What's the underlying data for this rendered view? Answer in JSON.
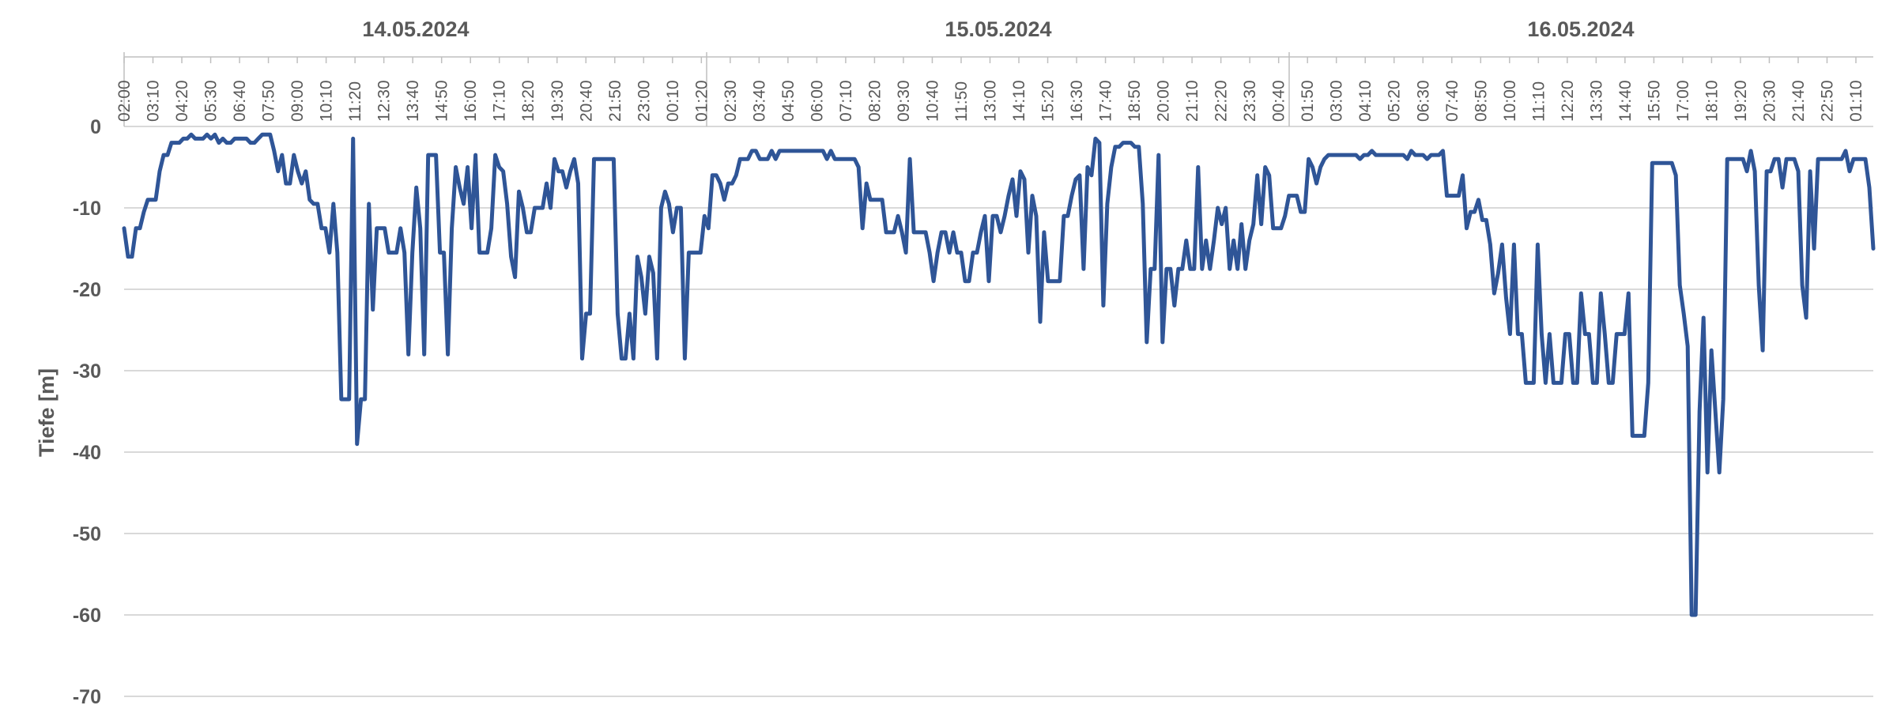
{
  "chart_data": {
    "type": "line",
    "ylabel": "Tiefe [m]",
    "ylim": [
      -70,
      0
    ],
    "yticks": [
      0,
      -10,
      -20,
      -30,
      -40,
      -50,
      -60,
      -70
    ],
    "grid": true,
    "line_color": "#2F5597",
    "date_labels": [
      "14.05.2024",
      "15.05.2024",
      "16.05.2024"
    ],
    "time_ticks": [
      "02:00",
      "03:10",
      "04:20",
      "05:30",
      "06:40",
      "07:50",
      "09:00",
      "10:10",
      "11:20",
      "12:30",
      "13:40",
      "14:50",
      "16:00",
      "17:10",
      "18:20",
      "19:30",
      "20:40",
      "21:50",
      "23:00",
      "00:10",
      "01:20",
      "02:30",
      "03:40",
      "04:50",
      "06:00",
      "07:10",
      "08:20",
      "09:30",
      "10:40",
      "11:50",
      "13:00",
      "14:10",
      "15:20",
      "16:30",
      "17:40",
      "18:50",
      "20:00",
      "21:10",
      "22:20",
      "23:30",
      "00:40",
      "01:50",
      "03:00",
      "04:10",
      "05:20",
      "06:30",
      "07:40",
      "08:50",
      "10:00",
      "11:10",
      "12:20",
      "13:30",
      "14:40",
      "15:50",
      "17:00",
      "18:10",
      "19:20",
      "20:30",
      "21:40",
      "22:50",
      "01:10"
    ],
    "series": [
      {
        "x_start": "2024-05-14 02:00",
        "x_end": "2024-05-17 02:00",
        "values": [
          -12.5,
          -16,
          -16,
          -12.5,
          -12.5,
          -10.5,
          -9,
          -9,
          -9,
          -5.5,
          -3.5,
          -3.5,
          -2,
          -2,
          -2,
          -1.5,
          -1.5,
          -1,
          -1.5,
          -1.5,
          -1.5,
          -1,
          -1.5,
          -1,
          -2,
          -1.5,
          -2,
          -2,
          -1.5,
          -1.5,
          -1.5,
          -1.5,
          -2,
          -2,
          -1.5,
          -1,
          -1,
          -1,
          -3,
          -5.5,
          -3.5,
          -7,
          -7,
          -3.5,
          -5.5,
          -7,
          -5.5,
          -9,
          -9.5,
          -9.5,
          -12.5,
          -12.5,
          -15.5,
          -9.5,
          -15.5,
          -33.5,
          -33.5,
          -33.5,
          -1.5,
          -39,
          -33.5,
          -33.5,
          -9.5,
          -22.5,
          -12.5,
          -12.5,
          -12.5,
          -15.5,
          -15.5,
          -15.5,
          -12.5,
          -15.5,
          -28,
          -15.5,
          -7.5,
          -12.5,
          -28,
          -3.5,
          -3.5,
          -3.5,
          -15.5,
          -15.5,
          -28,
          -12.5,
          -5,
          -7.5,
          -9.5,
          -5,
          -12.5,
          -3.5,
          -15.5,
          -15.5,
          -15.5,
          -12.5,
          -3.5,
          -5,
          -5.5,
          -9.5,
          -16,
          -18.5,
          -8,
          -10,
          -13,
          -13,
          -10,
          -10,
          -10,
          -7,
          -10,
          -4,
          -5.5,
          -5.5,
          -7.5,
          -5.5,
          -4,
          -7,
          -28.5,
          -23,
          -23,
          -4,
          -4,
          -4,
          -4,
          -4,
          -4,
          -23,
          -28.5,
          -28.5,
          -23,
          -28.5,
          -16,
          -18.5,
          -23,
          -16,
          -18,
          -28.5,
          -10,
          -8,
          -9.5,
          -13,
          -10,
          -10,
          -28.5,
          -15.5,
          -15.5,
          -15.5,
          -15.5,
          -11,
          -12.5,
          -6,
          -6,
          -7,
          -9,
          -7,
          -7,
          -6,
          -4,
          -4,
          -4,
          -3,
          -3,
          -4,
          -4,
          -4,
          -3,
          -4,
          -3,
          -3,
          -3,
          -3,
          -3,
          -3,
          -3,
          -3,
          -3,
          -3,
          -3,
          -3,
          -4,
          -3,
          -4,
          -4,
          -4,
          -4,
          -4,
          -4,
          -5,
          -12.5,
          -7,
          -9,
          -9,
          -9,
          -9,
          -13,
          -13,
          -13,
          -11,
          -13,
          -15.5,
          -4,
          -13,
          -13,
          -13,
          -13,
          -15.5,
          -19,
          -15.5,
          -13,
          -13,
          -15.5,
          -13,
          -15.5,
          -15.5,
          -19,
          -19,
          -15.5,
          -15.5,
          -13,
          -11,
          -19,
          -11,
          -11,
          -13,
          -11,
          -8.5,
          -6.5,
          -11,
          -5.5,
          -6.5,
          -15.5,
          -8.5,
          -11,
          -24,
          -13,
          -19,
          -19,
          -19,
          -19,
          -11,
          -11,
          -8.5,
          -6.5,
          -6,
          -17.5,
          -5,
          -6,
          -1.5,
          -2,
          -22,
          -9.5,
          -5,
          -2.5,
          -2.5,
          -2,
          -2,
          -2,
          -2.5,
          -2.5,
          -9.5,
          -26.5,
          -17.5,
          -17.5,
          -3.5,
          -26.5,
          -17.5,
          -17.5,
          -22,
          -17.5,
          -17.5,
          -14,
          -17.5,
          -17.5,
          -5,
          -17.5,
          -14,
          -17.5,
          -14,
          -10,
          -12,
          -10,
          -17.5,
          -14,
          -17.5,
          -12,
          -17.5,
          -14,
          -12,
          -6,
          -12,
          -5,
          -6,
          -12.5,
          -12.5,
          -12.5,
          -11,
          -8.5,
          -8.5,
          -8.5,
          -10.5,
          -10.5,
          -4,
          -5,
          -7,
          -5,
          -4,
          -3.5,
          -3.5,
          -3.5,
          -3.5,
          -3.5,
          -3.5,
          -3.5,
          -3.5,
          -4,
          -3.5,
          -3.5,
          -3,
          -3.5,
          -3.5,
          -3.5,
          -3.5,
          -3.5,
          -3.5,
          -3.5,
          -3.5,
          -4,
          -3,
          -3.5,
          -3.5,
          -3.5,
          -4,
          -3.5,
          -3.5,
          -3.5,
          -3,
          -8.5,
          -8.5,
          -8.5,
          -8.5,
          -6,
          -12.5,
          -10.5,
          -10.5,
          -9,
          -11.5,
          -11.5,
          -14.5,
          -20.5,
          -18,
          -14.5,
          -21,
          -25.5,
          -14.5,
          -25.5,
          -25.5,
          -31.5,
          -31.5,
          -31.5,
          -14.5,
          -25.5,
          -31.5,
          -25.5,
          -31.5,
          -31.5,
          -31.5,
          -25.5,
          -25.5,
          -31.5,
          -31.5,
          -20.5,
          -25.5,
          -25.5,
          -31.5,
          -31.5,
          -20.5,
          -25.5,
          -31.5,
          -31.5,
          -25.5,
          -25.5,
          -25.5,
          -20.5,
          -38,
          -38,
          -38,
          -38,
          -31.5,
          -4.5,
          -4.5,
          -4.5,
          -4.5,
          -4.5,
          -4.5,
          -6,
          -19.5,
          -23,
          -27,
          -60,
          -60,
          -35,
          -23.5,
          -42.5,
          -27.5,
          -35,
          -42.5,
          -33.5,
          -4,
          -4,
          -4,
          -4,
          -4,
          -5.5,
          -3,
          -5.5,
          -19.5,
          -27.5,
          -5.5,
          -5.5,
          -4,
          -4,
          -7.5,
          -4,
          -4,
          -4,
          -5.5,
          -19.5,
          -23.5,
          -5.5,
          -15,
          -4,
          -4,
          -4,
          -4,
          -4,
          -4,
          -4,
          -3,
          -5.5,
          -4,
          -4,
          -4,
          -4,
          -7.5,
          -15
        ]
      }
    ]
  }
}
